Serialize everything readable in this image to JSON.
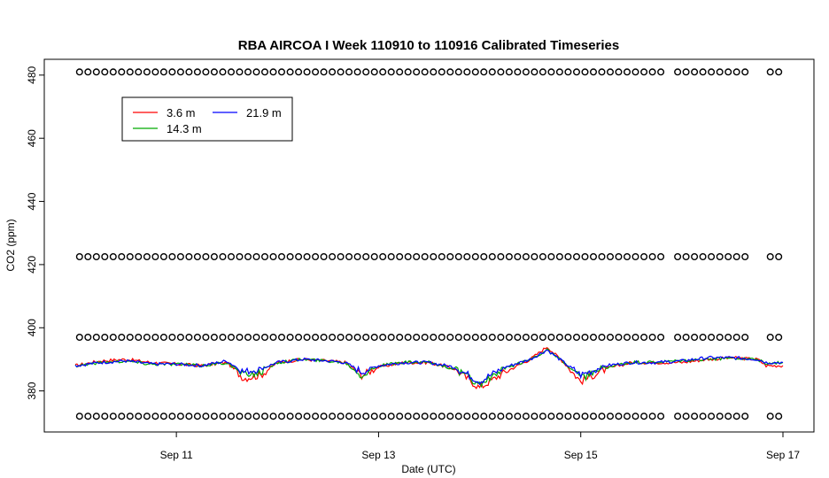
{
  "chart_data": {
    "type": "line",
    "title": "RBA AIRCOA I  Week 110910 to 110916  Calibrated Timeseries",
    "xlabel": "Date (UTC)",
    "ylabel": "CO2 (ppm)",
    "xlim": [
      "Sep 10 00:00",
      "Sep 17 00:00"
    ],
    "ylim": [
      367,
      485
    ],
    "x_ticks": [
      "Sep 11",
      "Sep 13",
      "Sep 15",
      "Sep 17"
    ],
    "y_ticks": [
      380,
      400,
      420,
      440,
      460,
      480
    ],
    "legend_position": "top-left",
    "grid": false,
    "series": [
      {
        "name": "3.6 m",
        "color": "#ff0000",
        "points": [
          [
            "Sep 10 00:00",
            388
          ],
          [
            "Sep 10 06:00",
            389.5
          ],
          [
            "Sep 10 12:00",
            390
          ],
          [
            "Sep 10 18:00",
            389
          ],
          [
            "Sep 11 00:00",
            388.5
          ],
          [
            "Sep 11 06:00",
            388
          ],
          [
            "Sep 11 12:00",
            389
          ],
          [
            "Sep 11 16:00",
            384
          ],
          [
            "Sep 11 20:00",
            385
          ],
          [
            "Sep 12 00:00",
            389
          ],
          [
            "Sep 12 06:00",
            390
          ],
          [
            "Sep 12 12:00",
            389.5
          ],
          [
            "Sep 12 16:00",
            389
          ],
          [
            "Sep 12 20:00",
            385
          ],
          [
            "Sep 13 00:00",
            387.5
          ],
          [
            "Sep 13 06:00",
            389
          ],
          [
            "Sep 13 12:00",
            389
          ],
          [
            "Sep 13 18:00",
            387
          ],
          [
            "Sep 14 00:00",
            381
          ],
          [
            "Sep 14 06:00",
            386
          ],
          [
            "Sep 14 12:00",
            390
          ],
          [
            "Sep 14 16:00",
            394
          ],
          [
            "Sep 14 20:00",
            389
          ],
          [
            "Sep 15 00:00",
            383
          ],
          [
            "Sep 15 06:00",
            387
          ],
          [
            "Sep 15 12:00",
            389
          ],
          [
            "Sep 15 18:00",
            389
          ],
          [
            "Sep 16 00:00",
            389
          ],
          [
            "Sep 16 06:00",
            390
          ],
          [
            "Sep 16 12:00",
            390.5
          ],
          [
            "Sep 16 18:00",
            390
          ],
          [
            "Sep 16 20:00",
            388
          ],
          [
            "Sep 17 00:00",
            388
          ]
        ]
      },
      {
        "name": "14.3 m",
        "color": "#00aa00",
        "points": [
          [
            "Sep 10 00:00",
            388
          ],
          [
            "Sep 10 06:00",
            389
          ],
          [
            "Sep 10 12:00",
            389.5
          ],
          [
            "Sep 10 18:00",
            388.5
          ],
          [
            "Sep 11 00:00",
            388.5
          ],
          [
            "Sep 11 06:00",
            388
          ],
          [
            "Sep 11 12:00",
            389
          ],
          [
            "Sep 11 16:00",
            385
          ],
          [
            "Sep 11 20:00",
            386
          ],
          [
            "Sep 12 00:00",
            389
          ],
          [
            "Sep 12 06:00",
            390
          ],
          [
            "Sep 12 12:00",
            389.5
          ],
          [
            "Sep 12 16:00",
            389
          ],
          [
            "Sep 12 20:00",
            385
          ],
          [
            "Sep 13 00:00",
            388
          ],
          [
            "Sep 13 06:00",
            389
          ],
          [
            "Sep 13 12:00",
            389
          ],
          [
            "Sep 13 18:00",
            387
          ],
          [
            "Sep 14 00:00",
            382
          ],
          [
            "Sep 14 06:00",
            387
          ],
          [
            "Sep 14 12:00",
            390
          ],
          [
            "Sep 14 16:00",
            393
          ],
          [
            "Sep 14 20:00",
            389
          ],
          [
            "Sep 15 00:00",
            384
          ],
          [
            "Sep 15 06:00",
            387.5
          ],
          [
            "Sep 15 12:00",
            389
          ],
          [
            "Sep 15 18:00",
            389
          ],
          [
            "Sep 16 00:00",
            389.5
          ],
          [
            "Sep 16 06:00",
            390
          ],
          [
            "Sep 16 12:00",
            390.5
          ],
          [
            "Sep 16 18:00",
            390
          ],
          [
            "Sep 16 20:00",
            388.5
          ],
          [
            "Sep 17 00:00",
            389
          ]
        ]
      },
      {
        "name": "21.9 m",
        "color": "#0000ff",
        "points": [
          [
            "Sep 10 00:00",
            388
          ],
          [
            "Sep 10 06:00",
            389
          ],
          [
            "Sep 10 12:00",
            389.5
          ],
          [
            "Sep 10 18:00",
            388.5
          ],
          [
            "Sep 11 00:00",
            388.5
          ],
          [
            "Sep 11 06:00",
            388
          ],
          [
            "Sep 11 12:00",
            389.5
          ],
          [
            "Sep 11 16:00",
            386
          ],
          [
            "Sep 11 20:00",
            387
          ],
          [
            "Sep 12 00:00",
            389
          ],
          [
            "Sep 12 06:00",
            390
          ],
          [
            "Sep 12 12:00",
            389.5
          ],
          [
            "Sep 12 16:00",
            389
          ],
          [
            "Sep 12 20:00",
            386
          ],
          [
            "Sep 13 00:00",
            388
          ],
          [
            "Sep 13 06:00",
            389
          ],
          [
            "Sep 13 12:00",
            389
          ],
          [
            "Sep 13 18:00",
            387.5
          ],
          [
            "Sep 14 00:00",
            383
          ],
          [
            "Sep 14 06:00",
            387.5
          ],
          [
            "Sep 14 12:00",
            390
          ],
          [
            "Sep 14 16:00",
            393
          ],
          [
            "Sep 14 20:00",
            389
          ],
          [
            "Sep 15 00:00",
            385
          ],
          [
            "Sep 15 06:00",
            388
          ],
          [
            "Sep 15 12:00",
            389
          ],
          [
            "Sep 15 18:00",
            389
          ],
          [
            "Sep 16 00:00",
            389.5
          ],
          [
            "Sep 16 06:00",
            390.5
          ],
          [
            "Sep 16 12:00",
            390.5
          ],
          [
            "Sep 16 18:00",
            390
          ],
          [
            "Sep 16 20:00",
            389
          ],
          [
            "Sep 17 00:00",
            389
          ]
        ]
      },
      {
        "name": "",
        "marker": "open-circle",
        "color": "#000000",
        "levels": [
          372,
          397,
          422.5,
          481
        ],
        "start": "Sep 10 01:00",
        "end": "Sep 17 00:00",
        "interval_hours": 2,
        "gaps": [
          [
            "Sep 15 19:00",
            "Sep 15 23:00"
          ],
          [
            "Sep 16 15:00",
            "Sep 16 20:00"
          ]
        ]
      }
    ]
  }
}
